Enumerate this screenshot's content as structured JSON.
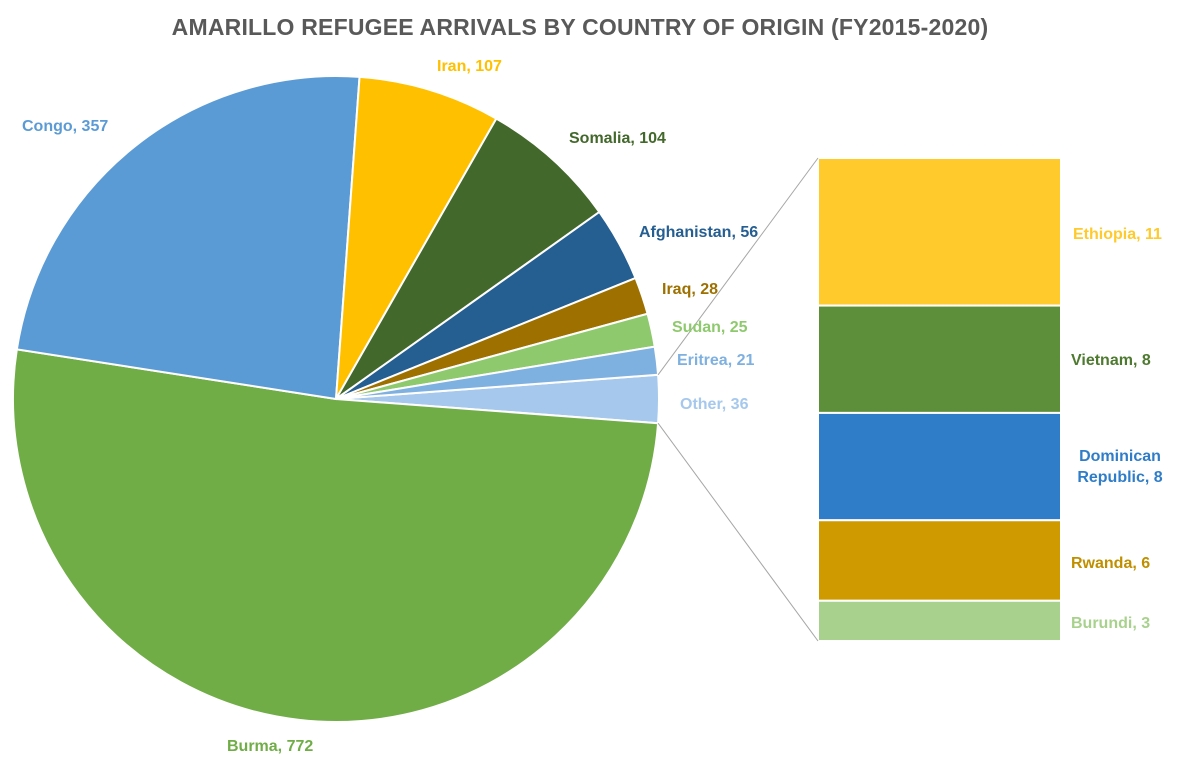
{
  "chart_data": {
    "type": "pie",
    "subtype": "bar-of-pie",
    "title": "AMARILLO REFUGEE ARRIVALS BY COUNTRY OF ORIGIN (FY2015-2020)",
    "slices": [
      {
        "name": "Burma",
        "value": 772,
        "color": "#70ad47",
        "label_color": "#70ad47"
      },
      {
        "name": "Congo",
        "value": 357,
        "color": "#5b9bd5",
        "label_color": "#5b9bd5"
      },
      {
        "name": "Iran",
        "value": 107,
        "color": "#ffc000",
        "label_color": "#ffc000"
      },
      {
        "name": "Somalia",
        "value": 104,
        "color": "#43682b",
        "label_color": "#43682b"
      },
      {
        "name": "Afghanistan",
        "value": 56,
        "color": "#255e91",
        "label_color": "#255e91"
      },
      {
        "name": "Iraq",
        "value": 28,
        "color": "#9e7000",
        "label_color": "#9e7000"
      },
      {
        "name": "Sudan",
        "value": 25,
        "color": "#8fc96e",
        "label_color": "#8fc96e"
      },
      {
        "name": "Eritrea",
        "value": 21,
        "color": "#7eb0e0",
        "label_color": "#7eb0e0"
      },
      {
        "name": "Other",
        "value": 36,
        "color": "#a5c8ec",
        "label_color": "#a5c8ec"
      }
    ],
    "breakdown": {
      "of": "Other",
      "items": [
        {
          "name": "Ethiopia",
          "value": 11,
          "color": "#ffca2c",
          "label_color": "#ffca2c"
        },
        {
          "name": "Vietnam",
          "value": 8,
          "color": "#5d8f3a",
          "label_color": "#4e7a30"
        },
        {
          "name": "Dominican Republic",
          "value": 8,
          "color": "#2f7dc8",
          "label_color": "#2f7dc8"
        },
        {
          "name": "Rwanda",
          "value": 6,
          "color": "#cf9a00",
          "label_color": "#c08f00"
        },
        {
          "name": "Burundi",
          "value": 3,
          "color": "#a9d18e",
          "label_color": "#a9d18e"
        }
      ]
    }
  },
  "labels": {
    "burma": "Burma, 772",
    "congo": "Congo, 357",
    "iran": "Iran, 107",
    "somalia": "Somalia, 104",
    "afghanistan": "Afghanistan, 56",
    "iraq": "Iraq, 28",
    "sudan": "Sudan, 25",
    "eritrea": "Eritrea, 21",
    "other": "Other, 36",
    "ethiopia": "Ethiopia, 11",
    "vietnam": "Vietnam, 8",
    "dominican_line1": "Dominican",
    "dominican_line2": "Republic, 8",
    "rwanda": "Rwanda, 6",
    "burundi": "Burundi, 3"
  }
}
